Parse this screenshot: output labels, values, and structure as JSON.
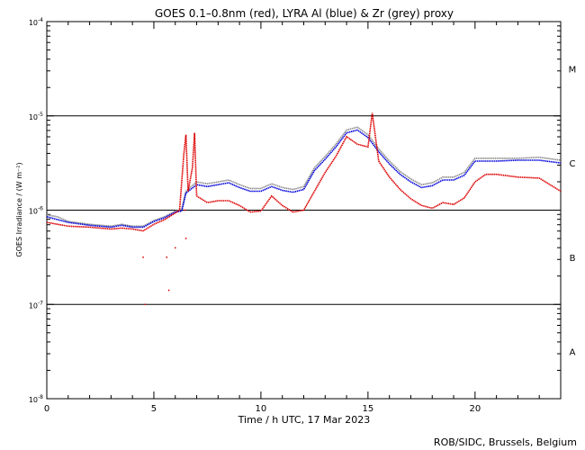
{
  "chart_data": {
    "type": "line",
    "title": "GOES 0.1–0.8nm (red), LYRA Al (blue) & Zr (grey) proxy",
    "xlabel": "Time / h UTC, 17 Mar 2023",
    "ylabel": "GOES Irradiance / (W m⁻²)",
    "xlim": [
      0,
      24
    ],
    "ylim_log10": [
      -8,
      -4
    ],
    "x_ticks": [
      {
        "value": 0,
        "label": "0"
      },
      {
        "value": 5,
        "label": "5"
      },
      {
        "value": 10,
        "label": "10"
      },
      {
        "value": 15,
        "label": "15"
      },
      {
        "value": 20,
        "label": "20"
      }
    ],
    "y_ticks": [
      {
        "exp": -4,
        "base": "10",
        "sup": "-4"
      },
      {
        "exp": -5,
        "base": "10",
        "sup": "-5"
      },
      {
        "exp": -6,
        "base": "10",
        "sup": "-6"
      },
      {
        "exp": -7,
        "base": "10",
        "sup": "-7"
      },
      {
        "exp": -8,
        "base": "10",
        "sup": "-8"
      }
    ],
    "flare_class_lines_log10": [
      -5,
      -6,
      -7
    ],
    "class_labels": [
      {
        "label": "M",
        "center_log10": -4.5
      },
      {
        "label": "C",
        "center_log10": -5.5
      },
      {
        "label": "B",
        "center_log10": -6.5
      },
      {
        "label": "A",
        "center_log10": -7.5
      }
    ],
    "series": [
      {
        "name": "Zr proxy",
        "color": "#8c8c8c",
        "points": [
          [
            0,
            -6.05
          ],
          [
            0.5,
            -6.07
          ],
          [
            1.0,
            -6.12
          ],
          [
            2.0,
            -6.15
          ],
          [
            3.0,
            -6.17
          ],
          [
            3.5,
            -6.15
          ],
          [
            4.0,
            -6.17
          ],
          [
            4.5,
            -6.17
          ],
          [
            5.0,
            -6.11
          ],
          [
            5.5,
            -6.07
          ],
          [
            6.0,
            -6.01
          ],
          [
            6.3,
            -5.99
          ],
          [
            6.5,
            -5.8
          ],
          [
            7.0,
            -5.7
          ],
          [
            7.5,
            -5.72
          ],
          [
            8.0,
            -5.7
          ],
          [
            8.5,
            -5.68
          ],
          [
            9.0,
            -5.73
          ],
          [
            9.5,
            -5.77
          ],
          [
            10.0,
            -5.77
          ],
          [
            10.5,
            -5.72
          ],
          [
            11.0,
            -5.76
          ],
          [
            11.5,
            -5.78
          ],
          [
            12.0,
            -5.75
          ],
          [
            12.5,
            -5.55
          ],
          [
            13.0,
            -5.43
          ],
          [
            13.5,
            -5.3
          ],
          [
            14.0,
            -5.15
          ],
          [
            14.5,
            -5.12
          ],
          [
            15.0,
            -5.2
          ],
          [
            15.5,
            -5.35
          ],
          [
            16.0,
            -5.48
          ],
          [
            16.5,
            -5.59
          ],
          [
            17.0,
            -5.67
          ],
          [
            17.5,
            -5.73
          ],
          [
            18.0,
            -5.71
          ],
          [
            18.5,
            -5.65
          ],
          [
            19.0,
            -5.65
          ],
          [
            19.5,
            -5.6
          ],
          [
            20.0,
            -5.45
          ],
          [
            21.0,
            -5.45
          ],
          [
            22.0,
            -5.45
          ],
          [
            23.0,
            -5.44
          ],
          [
            24.0,
            -5.47
          ]
        ]
      },
      {
        "name": "LYRA Al",
        "color": "#0000dd",
        "points": [
          [
            0,
            -6.07
          ],
          [
            0.5,
            -6.1
          ],
          [
            1.0,
            -6.13
          ],
          [
            2.0,
            -6.16
          ],
          [
            3.0,
            -6.18
          ],
          [
            3.5,
            -6.16
          ],
          [
            4.0,
            -6.18
          ],
          [
            4.5,
            -6.18
          ],
          [
            5.0,
            -6.12
          ],
          [
            5.5,
            -6.08
          ],
          [
            6.0,
            -6.02
          ],
          [
            6.3,
            -6.01
          ],
          [
            6.5,
            -5.82
          ],
          [
            7.0,
            -5.73
          ],
          [
            7.5,
            -5.75
          ],
          [
            8.0,
            -5.73
          ],
          [
            8.5,
            -5.71
          ],
          [
            9.0,
            -5.76
          ],
          [
            9.5,
            -5.8
          ],
          [
            10.0,
            -5.8
          ],
          [
            10.5,
            -5.75
          ],
          [
            11.0,
            -5.79
          ],
          [
            11.5,
            -5.81
          ],
          [
            12.0,
            -5.78
          ],
          [
            12.5,
            -5.58
          ],
          [
            13.0,
            -5.46
          ],
          [
            13.5,
            -5.33
          ],
          [
            14.0,
            -5.18
          ],
          [
            14.5,
            -5.15
          ],
          [
            15.0,
            -5.23
          ],
          [
            15.5,
            -5.38
          ],
          [
            16.0,
            -5.51
          ],
          [
            16.5,
            -5.62
          ],
          [
            17.0,
            -5.7
          ],
          [
            17.5,
            -5.76
          ],
          [
            18.0,
            -5.74
          ],
          [
            18.5,
            -5.68
          ],
          [
            19.0,
            -5.68
          ],
          [
            19.5,
            -5.63
          ],
          [
            20.0,
            -5.48
          ],
          [
            21.0,
            -5.48
          ],
          [
            22.0,
            -5.47
          ],
          [
            23.0,
            -5.47
          ],
          [
            24.0,
            -5.5
          ]
        ]
      },
      {
        "name": "GOES 0.1-0.8nm",
        "color": "#dd0000",
        "points": [
          [
            0,
            -6.13
          ],
          [
            0.5,
            -6.15
          ],
          [
            1.0,
            -6.17
          ],
          [
            2.0,
            -6.18
          ],
          [
            3.0,
            -6.2
          ],
          [
            3.5,
            -6.19
          ],
          [
            4.0,
            -6.2
          ],
          [
            4.5,
            -6.22
          ],
          [
            5.0,
            -6.15
          ],
          [
            5.5,
            -6.1
          ],
          [
            6.0,
            -6.03
          ],
          [
            6.2,
            -6.0
          ],
          [
            6.4,
            -5.4
          ],
          [
            6.5,
            -5.2
          ],
          [
            6.6,
            -5.8
          ],
          [
            6.8,
            -5.55
          ],
          [
            6.9,
            -5.18
          ],
          [
            7.0,
            -5.85
          ],
          [
            7.5,
            -5.92
          ],
          [
            8.0,
            -5.9
          ],
          [
            8.5,
            -5.9
          ],
          [
            9.0,
            -5.95
          ],
          [
            9.5,
            -6.02
          ],
          [
            10.0,
            -6.01
          ],
          [
            10.5,
            -5.85
          ],
          [
            11.0,
            -5.95
          ],
          [
            11.5,
            -6.02
          ],
          [
            12.0,
            -6.0
          ],
          [
            12.5,
            -5.8
          ],
          [
            13.0,
            -5.6
          ],
          [
            13.5,
            -5.43
          ],
          [
            14.0,
            -5.22
          ],
          [
            14.5,
            -5.3
          ],
          [
            15.0,
            -5.33
          ],
          [
            15.2,
            -4.97
          ],
          [
            15.5,
            -5.48
          ],
          [
            16.0,
            -5.65
          ],
          [
            16.5,
            -5.78
          ],
          [
            17.0,
            -5.88
          ],
          [
            17.5,
            -5.95
          ],
          [
            18.0,
            -5.98
          ],
          [
            18.5,
            -5.92
          ],
          [
            19.0,
            -5.94
          ],
          [
            19.5,
            -5.87
          ],
          [
            20.0,
            -5.7
          ],
          [
            20.5,
            -5.62
          ],
          [
            21.0,
            -5.62
          ],
          [
            22.0,
            -5.65
          ],
          [
            23.0,
            -5.66
          ],
          [
            24.0,
            -5.8
          ]
        ]
      }
    ],
    "red_outliers": [
      [
        4.5,
        -6.5
      ],
      [
        4.6,
        -7.0
      ],
      [
        5.6,
        -6.5
      ],
      [
        5.7,
        -6.85
      ],
      [
        6.0,
        -6.4
      ],
      [
        6.5,
        -6.3
      ],
      [
        6.45,
        -6.0
      ]
    ],
    "footer": "ROB/SIDC, Brussels, Belgium"
  }
}
